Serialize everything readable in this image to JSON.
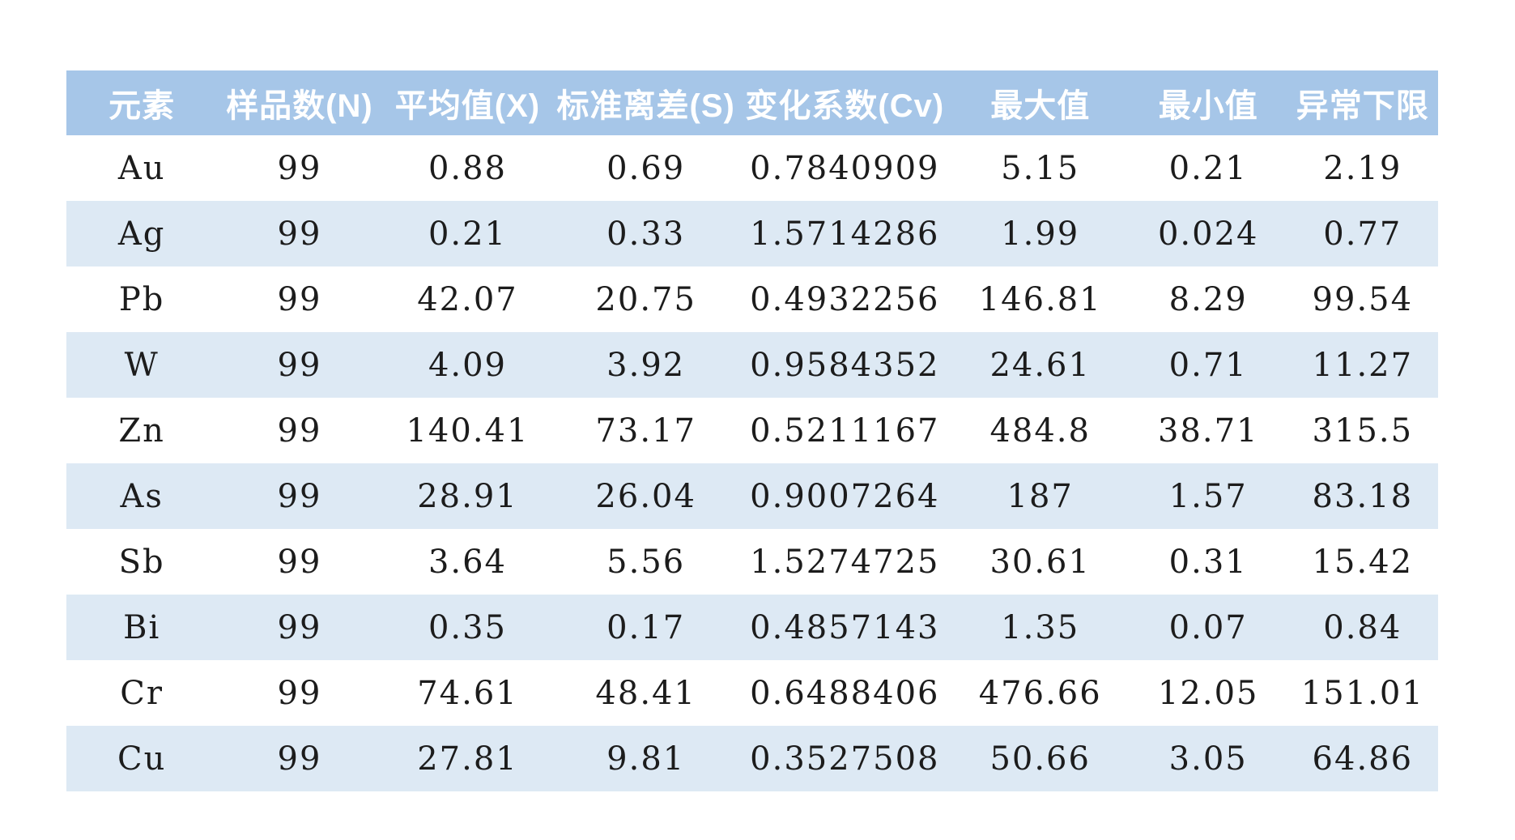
{
  "colors": {
    "header_bg": "#a6c6e8",
    "header_text": "#ffffff",
    "stripe_bg": "#dde9f4",
    "cell_text": "#1c1c1c",
    "page_bg": "#ffffff"
  },
  "chart_data": {
    "type": "table",
    "title": "",
    "columns": [
      "元素",
      "样品数(N)",
      "平均值(X)",
      "标准离差(S)",
      "变化系数(Cv)",
      "最大值",
      "最小值",
      "异常下限"
    ],
    "rows": [
      [
        "Au",
        "99",
        "0.88",
        "0.69",
        "0.7840909",
        "5.15",
        "0.21",
        "2.19"
      ],
      [
        "Ag",
        "99",
        "0.21",
        "0.33",
        "1.5714286",
        "1.99",
        "0.024",
        "0.77"
      ],
      [
        "Pb",
        "99",
        "42.07",
        "20.75",
        "0.4932256",
        "146.81",
        "8.29",
        "99.54"
      ],
      [
        "W",
        "99",
        "4.09",
        "3.92",
        "0.9584352",
        "24.61",
        "0.71",
        "11.27"
      ],
      [
        "Zn",
        "99",
        "140.41",
        "73.17",
        "0.5211167",
        "484.8",
        "38.71",
        "315.5"
      ],
      [
        "As",
        "99",
        "28.91",
        "26.04",
        "0.9007264",
        "187",
        "1.57",
        "83.18"
      ],
      [
        "Sb",
        "99",
        "3.64",
        "5.56",
        "1.5274725",
        "30.61",
        "0.31",
        "15.42"
      ],
      [
        "Bi",
        "99",
        "0.35",
        "0.17",
        "0.4857143",
        "1.35",
        "0.07",
        "0.84"
      ],
      [
        "Cr",
        "99",
        "74.61",
        "48.41",
        "0.6488406",
        "476.66",
        "12.05",
        "151.01"
      ],
      [
        "Cu",
        "99",
        "27.81",
        "9.81",
        "0.3527508",
        "50.66",
        "3.05",
        "64.86"
      ]
    ],
    "layout": {
      "striping": "even rows light blue",
      "alignment": "center",
      "grid": false
    }
  }
}
